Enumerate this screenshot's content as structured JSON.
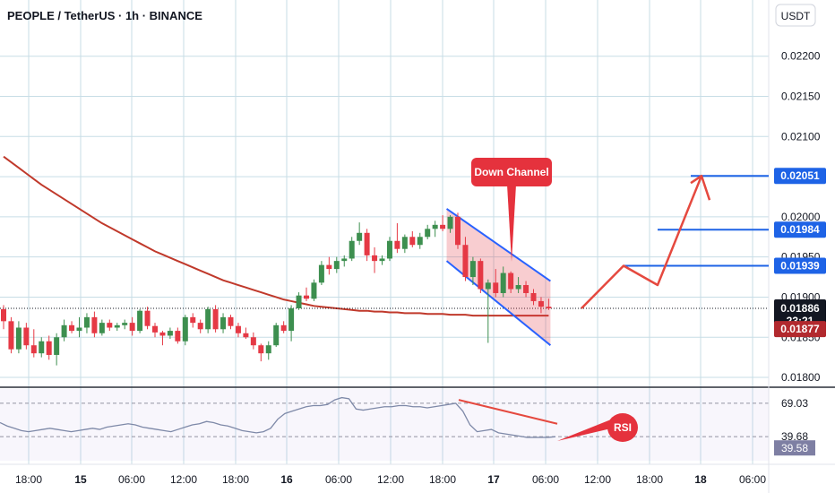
{
  "header": {
    "title": "PEOPLE / TetherUS · 1h · BINANCE"
  },
  "currency_button": "USDT",
  "colors": {
    "up": "#26a69a",
    "up_body": "#3d8f4f",
    "down": "#e53945",
    "ma": "#c0392b",
    "level": "#1e63e6",
    "channel": "#2962ff",
    "grid": "#c7dde6",
    "rsi": "#7e89a8",
    "rsi_tag": "#7e7fa3"
  },
  "annotations": {
    "down_channel": "Down Channel",
    "rsi": "RSI"
  },
  "price_tags": {
    "current_price": "0.01886",
    "countdown": "23:21",
    "ma_price": "0.01877",
    "level_1": "0.02051",
    "level_2": "0.01984",
    "level_3": "0.01939"
  },
  "rsi_tags": {
    "rsi_value": "39.58",
    "level_a": "69.03",
    "level_b": "39.68"
  },
  "chart_data": {
    "type": "candlestick",
    "title": "PEOPLE / TetherUS · 1h · BINANCE",
    "y_axis_ticks": [
      "0.02200",
      "0.02150",
      "0.02100",
      "0.02050",
      "0.02000",
      "0.01950",
      "0.01900",
      "0.01850",
      "0.01800"
    ],
    "ylim": [
      0.0179,
      0.0227
    ],
    "x_axis_ticks": [
      "18:00",
      "15",
      "06:00",
      "12:00",
      "18:00",
      "16",
      "06:00",
      "12:00",
      "18:00",
      "17",
      "06:00",
      "12:00",
      "18:00",
      "18",
      "06:00"
    ],
    "candles": [
      [
        0.01885,
        0.0189,
        0.0186,
        0.0187
      ],
      [
        0.0187,
        0.01875,
        0.0183,
        0.01835
      ],
      [
        0.01835,
        0.0187,
        0.0183,
        0.01862
      ],
      [
        0.01862,
        0.01868,
        0.01835,
        0.0184
      ],
      [
        0.0184,
        0.0186,
        0.01825,
        0.0183
      ],
      [
        0.0183,
        0.0185,
        0.01825,
        0.01845
      ],
      [
        0.01845,
        0.01852,
        0.01822,
        0.01828
      ],
      [
        0.01828,
        0.01855,
        0.01815,
        0.0185
      ],
      [
        0.0185,
        0.01872,
        0.01845,
        0.01865
      ],
      [
        0.01865,
        0.0187,
        0.01855,
        0.01858
      ],
      [
        0.01858,
        0.01875,
        0.0185,
        0.01862
      ],
      [
        0.01862,
        0.0188,
        0.01855,
        0.01875
      ],
      [
        0.01875,
        0.01882,
        0.0185,
        0.01855
      ],
      [
        0.01855,
        0.01872,
        0.01852,
        0.01868
      ],
      [
        0.01868,
        0.01872,
        0.01858,
        0.01862
      ],
      [
        0.01862,
        0.01868,
        0.01858,
        0.01865
      ],
      [
        0.01865,
        0.01872,
        0.0186,
        0.01868
      ],
      [
        0.01868,
        0.01875,
        0.01852,
        0.01858
      ],
      [
        0.01858,
        0.01885,
        0.01855,
        0.01883
      ],
      [
        0.01883,
        0.01888,
        0.0186,
        0.01864
      ],
      [
        0.01864,
        0.01868,
        0.0185,
        0.01856
      ],
      [
        0.01856,
        0.01858,
        0.0184,
        0.01852
      ],
      [
        0.01852,
        0.01862,
        0.01848,
        0.01858
      ],
      [
        0.01858,
        0.01862,
        0.01842,
        0.01845
      ],
      [
        0.01845,
        0.01878,
        0.0184,
        0.01875
      ],
      [
        0.01875,
        0.0188,
        0.01862,
        0.01868
      ],
      [
        0.01868,
        0.01872,
        0.01855,
        0.0186
      ],
      [
        0.0186,
        0.01888,
        0.01855,
        0.01885
      ],
      [
        0.01885,
        0.0189,
        0.01856,
        0.0186
      ],
      [
        0.0186,
        0.0188,
        0.01855,
        0.01875
      ],
      [
        0.01875,
        0.01878,
        0.0186,
        0.01864
      ],
      [
        0.01864,
        0.01868,
        0.0185,
        0.01855
      ],
      [
        0.01855,
        0.01862,
        0.01848,
        0.0185
      ],
      [
        0.0185,
        0.01856,
        0.01835,
        0.0184
      ],
      [
        0.0184,
        0.01842,
        0.0182,
        0.0183
      ],
      [
        0.0183,
        0.01845,
        0.01822,
        0.0184
      ],
      [
        0.0184,
        0.01868,
        0.01838,
        0.01865
      ],
      [
        0.01865,
        0.0187,
        0.01855,
        0.01858
      ],
      [
        0.01858,
        0.0189,
        0.01845,
        0.01886
      ],
      [
        0.01886,
        0.01906,
        0.01884,
        0.01902
      ],
      [
        0.01902,
        0.01912,
        0.01895,
        0.01898
      ],
      [
        0.01898,
        0.01922,
        0.01895,
        0.01918
      ],
      [
        0.01918,
        0.01945,
        0.01915,
        0.0194
      ],
      [
        0.0194,
        0.0195,
        0.01928,
        0.01935
      ],
      [
        0.01935,
        0.0195,
        0.0193,
        0.01945
      ],
      [
        0.01945,
        0.01952,
        0.01938,
        0.01948
      ],
      [
        0.01948,
        0.01975,
        0.01945,
        0.0197
      ],
      [
        0.0197,
        0.01993,
        0.01965,
        0.0198
      ],
      [
        0.0198,
        0.01985,
        0.01945,
        0.01952
      ],
      [
        0.01952,
        0.01962,
        0.0193,
        0.01945
      ],
      [
        0.01945,
        0.01952,
        0.0194,
        0.01948
      ],
      [
        0.01948,
        0.01975,
        0.01945,
        0.0197
      ],
      [
        0.0197,
        0.01992,
        0.01955,
        0.0196
      ],
      [
        0.0196,
        0.01978,
        0.01955,
        0.01975
      ],
      [
        0.01975,
        0.01982,
        0.01962,
        0.01965
      ],
      [
        0.01965,
        0.0198,
        0.0196,
        0.01975
      ],
      [
        0.01975,
        0.0199,
        0.01972,
        0.01985
      ],
      [
        0.01985,
        0.01995,
        0.01975,
        0.0199
      ],
      [
        0.0199,
        0.02002,
        0.01982,
        0.01985
      ],
      [
        0.01985,
        0.02002,
        0.0198,
        0.02
      ],
      [
        0.02,
        0.02005,
        0.0196,
        0.01965
      ],
      [
        0.01965,
        0.01975,
        0.0192,
        0.01925
      ],
      [
        0.01925,
        0.0195,
        0.01915,
        0.01945
      ],
      [
        0.01945,
        0.01948,
        0.01905,
        0.0191
      ],
      [
        0.0191,
        0.01922,
        0.01843,
        0.01918
      ],
      [
        0.01918,
        0.01935,
        0.019,
        0.01905
      ],
      [
        0.01905,
        0.01938,
        0.019,
        0.0193
      ],
      [
        0.0193,
        0.01932,
        0.01905,
        0.0191
      ],
      [
        0.0191,
        0.01925,
        0.01905,
        0.01915
      ],
      [
        0.01915,
        0.0192,
        0.019,
        0.01905
      ],
      [
        0.01905,
        0.0191,
        0.0189,
        0.01895
      ],
      [
        0.01895,
        0.019,
        0.0188,
        0.01888
      ],
      [
        0.01888,
        0.01898,
        0.01884,
        0.01886
      ]
    ],
    "moving_average": {
      "label": "",
      "values": [
        0.02075,
        0.02068,
        0.02061,
        0.02054,
        0.02047,
        0.0204,
        0.02034,
        0.02028,
        0.02022,
        0.02016,
        0.0201,
        0.02004,
        0.01998,
        0.01992,
        0.01987,
        0.01982,
        0.01977,
        0.01972,
        0.01967,
        0.01962,
        0.01957,
        0.01953,
        0.01949,
        0.01945,
        0.01941,
        0.01937,
        0.01933,
        0.01929,
        0.01925,
        0.01921,
        0.01918,
        0.01915,
        0.01912,
        0.01909,
        0.01906,
        0.01903,
        0.019,
        0.01897,
        0.01895,
        0.01893,
        0.01891,
        0.01889,
        0.01888,
        0.01887,
        0.01886,
        0.01885,
        0.01884,
        0.01883,
        0.01883,
        0.01882,
        0.01882,
        0.01881,
        0.01881,
        0.0188,
        0.0188,
        0.0188,
        0.01879,
        0.01879,
        0.01879,
        0.01878,
        0.01878,
        0.01878,
        0.01877,
        0.01877,
        0.01877,
        0.01877,
        0.01877,
        0.01877,
        0.01877,
        0.01877,
        0.01877,
        0.01877,
        0.01877
      ]
    },
    "horizontal_levels": [
      0.02051,
      0.01984,
      0.01939
    ],
    "down_channel": {
      "upper": [
        [
          0.0201,
          0.0192
        ]
      ],
      "lower": [
        [
          0.01945,
          0.0184
        ]
      ]
    },
    "projection_path": [
      0.01886,
      0.01939,
      0.01915,
      0.02051
    ],
    "rsi": {
      "label": "RSI",
      "levels": [
        69.03,
        39.68
      ],
      "current": 39.58,
      "values": [
        52,
        49,
        47,
        45,
        44,
        45,
        46,
        47,
        46,
        45,
        44,
        45,
        46,
        47,
        46,
        48,
        49,
        50,
        51,
        50,
        48,
        47,
        46,
        45,
        44,
        46,
        48,
        50,
        51,
        53,
        52,
        50,
        49,
        47,
        45,
        44,
        43,
        44,
        47,
        55,
        60,
        62,
        64,
        66,
        67,
        67,
        68,
        72,
        74,
        73,
        64,
        63,
        64,
        65,
        66,
        66,
        67,
        67,
        66,
        66,
        65,
        66,
        67,
        68,
        69,
        62,
        50,
        44,
        45,
        46,
        43,
        42,
        41,
        40,
        39,
        39,
        39,
        39,
        39.6
      ]
    }
  }
}
